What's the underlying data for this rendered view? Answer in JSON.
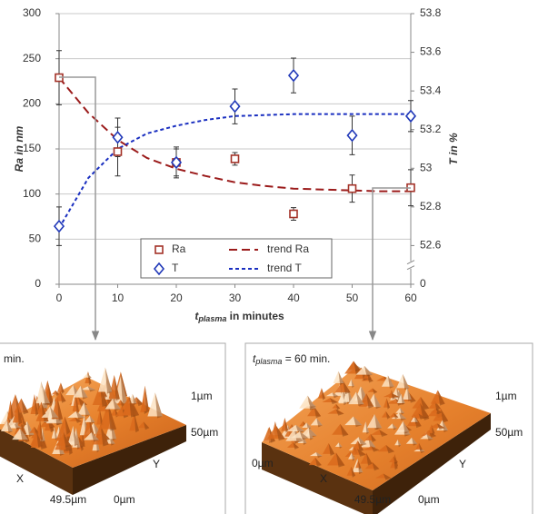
{
  "chart_data": {
    "type": "scatter",
    "y_label": "Ra in nm",
    "y2_label": "T in %",
    "x_label": [
      "t",
      "plasma",
      " in minutes"
    ],
    "x": [
      0,
      10,
      20,
      30,
      40,
      50,
      60
    ],
    "xlim": [
      0,
      60
    ],
    "xticks": [
      0,
      10,
      20,
      30,
      40,
      50,
      60
    ],
    "ylim": [
      0,
      300
    ],
    "yticks": [
      0,
      50,
      100,
      150,
      200,
      250,
      300
    ],
    "y2lim": [
      0,
      53.8
    ],
    "y2ticks": [
      0,
      52.6,
      52.8,
      53,
      53.2,
      53.4,
      53.6,
      53.8
    ],
    "y2_break": [
      0,
      52.6
    ],
    "grid": true,
    "series": [
      {
        "name": "Ra",
        "color": "#a33228",
        "marker": "square",
        "values": [
          229,
          147,
          135,
          139,
          78,
          106,
          107
        ],
        "errors": [
          30,
          27,
          15,
          7,
          7,
          15,
          20
        ]
      },
      {
        "name": "T",
        "color": "#2038b8",
        "marker": "diamond",
        "axis": "y2",
        "values": [
          52.7,
          53.16,
          53.03,
          53.32,
          53.48,
          53.17,
          53.27
        ],
        "errors": [
          0.1,
          0.1,
          0.08,
          0.09,
          0.09,
          0.1,
          0.08
        ]
      },
      {
        "name": "trend Ra",
        "color": "#9b1b1b",
        "line": "dashed",
        "x": [
          0,
          5,
          10,
          15,
          20,
          25,
          30,
          35,
          40,
          45,
          50,
          55,
          60
        ],
        "values": [
          229,
          190,
          160,
          140,
          128,
          120,
          113,
          109,
          106,
          105,
          104,
          103,
          103
        ]
      },
      {
        "name": "trend T",
        "color": "#1a2fc0",
        "line": "dotted",
        "axis": "y2",
        "x": [
          0,
          5,
          10,
          15,
          20,
          25,
          30,
          35,
          40,
          45,
          50,
          55,
          60
        ],
        "values": [
          52.69,
          52.95,
          53.1,
          53.18,
          53.22,
          53.25,
          53.27,
          53.275,
          53.28,
          53.28,
          53.28,
          53.28,
          53.28
        ]
      }
    ]
  },
  "insets": [
    {
      "caption": [
        "min."
      ],
      "labels": {
        "height": "1µm",
        "y_end": "50µm",
        "x_axis": "X",
        "y_axis": "Y",
        "x_end": "49.5µm",
        "origin": "0µm"
      }
    },
    {
      "caption": [
        "t",
        "plasma",
        " = 60 min."
      ],
      "labels": {
        "height": "1µm",
        "y_end": "50µm",
        "z_origin": "0µm",
        "x_axis": "X",
        "y_axis": "Y",
        "x_end": "49.5µm",
        "origin": "0µm"
      }
    }
  ]
}
